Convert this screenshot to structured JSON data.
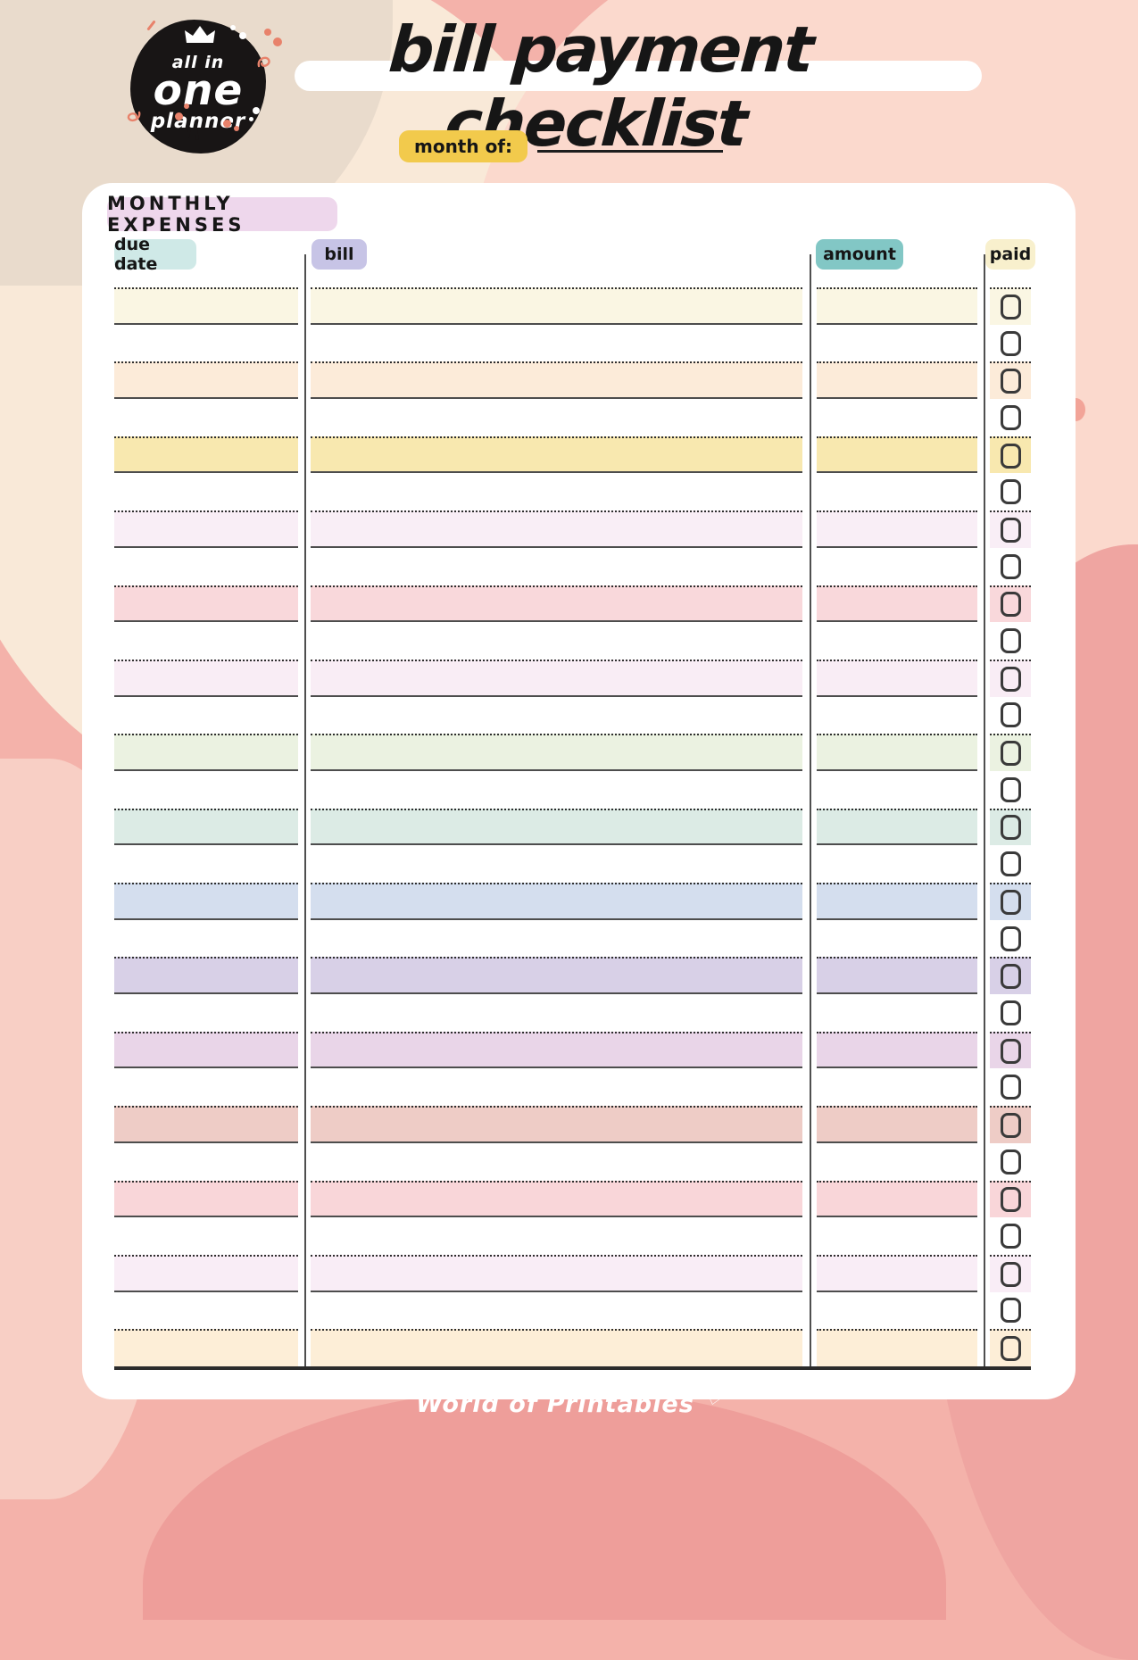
{
  "logo": {
    "line1": "all in",
    "line2": "one",
    "line3": "planner"
  },
  "title": "bill payment checklist",
  "month": {
    "label": "month of:",
    "value": ""
  },
  "section_title": "MONTHLY EXPENSES",
  "columns": [
    {
      "key": "due_date",
      "label": "due date",
      "pill_color": "#cfe9e7"
    },
    {
      "key": "bill",
      "label": "bill",
      "pill_color": "#c7c4e6"
    },
    {
      "key": "amount",
      "label": "amount",
      "pill_color": "#82c7c5"
    },
    {
      "key": "paid",
      "label": "paid",
      "pill_color": "#f8f0cd"
    }
  ],
  "footer": {
    "text": "World of Printables",
    "heart": "♡"
  },
  "colors": {
    "section_pill": "#eed7ec",
    "month_pill": "#f2ca4c",
    "ink": "#161616",
    "solid_rule": "#4d4d4d",
    "dotted_rule": "#2e2e2e",
    "divider": "#4f4f4f",
    "checkbox_border": "#3a3a3a",
    "card": "#ffffff",
    "bg_tan": "#e9dbcc",
    "bg_cream": "#f9e9d8",
    "bg_pink": "#fbd9cd",
    "bg_salmon": "#f4b2aa",
    "bg_rose": "#ee9e9a"
  },
  "table": {
    "rows": [
      {
        "fill": "#faf6e3"
      },
      {
        "fill": null
      },
      {
        "fill": "#fcebd9"
      },
      {
        "fill": null
      },
      {
        "fill": "#f8e8af"
      },
      {
        "fill": null
      },
      {
        "fill": "#f9eef6"
      },
      {
        "fill": null
      },
      {
        "fill": "#f9d8db"
      },
      {
        "fill": null
      },
      {
        "fill": "#f9edf5"
      },
      {
        "fill": null
      },
      {
        "fill": "#ebf2e1"
      },
      {
        "fill": null
      },
      {
        "fill": "#dcebe5"
      },
      {
        "fill": null
      },
      {
        "fill": "#d4deee"
      },
      {
        "fill": null
      },
      {
        "fill": "#d8d0e7"
      },
      {
        "fill": null
      },
      {
        "fill": "#e9d5e8"
      },
      {
        "fill": null
      },
      {
        "fill": "#eeccc6"
      },
      {
        "fill": null
      },
      {
        "fill": "#f9d6d9"
      },
      {
        "fill": null
      },
      {
        "fill": "#f9edf6"
      },
      {
        "fill": null
      },
      {
        "fill": "#fdeed7"
      }
    ]
  }
}
